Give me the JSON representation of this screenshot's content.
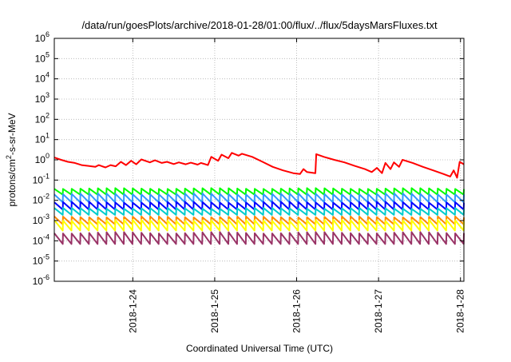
{
  "chart_data": {
    "type": "line",
    "title": "/data/run/goesPlots/archive/2018-01-28/01:00/flux/../flux/5daysMarsFluxes.txt",
    "xlabel": "Coordinated Universal Time (UTC)",
    "ylabel": "protons/cm²-s-sr-MeV",
    "y_scale": "log",
    "ylim": [
      1e-06,
      1000000.0
    ],
    "x_range_days": [
      "2018-01-23T01:00",
      "2018-01-28T01:00"
    ],
    "x_ticks": [
      {
        "label": "2018-1-24",
        "date": "2018-01-24T00:00"
      },
      {
        "label": "2018-1-25",
        "date": "2018-01-25T00:00"
      },
      {
        "label": "2018-1-26",
        "date": "2018-01-26T00:00"
      },
      {
        "label": "2018-1-27",
        "date": "2018-01-27T00:00"
      },
      {
        "label": "2018-1-28",
        "date": "2018-01-28T00:00"
      }
    ],
    "y_ticks": [
      {
        "base": "10",
        "exp": "6",
        "value": 1000000.0
      },
      {
        "base": "10",
        "exp": "5",
        "value": 100000.0
      },
      {
        "base": "10",
        "exp": "4",
        "value": 10000.0
      },
      {
        "base": "10",
        "exp": "3",
        "value": 1000.0
      },
      {
        "base": "10",
        "exp": "2",
        "value": 100.0
      },
      {
        "base": "10",
        "exp": "1",
        "value": 10.0
      },
      {
        "base": "10",
        "exp": "0",
        "value": 1
      },
      {
        "base": "10",
        "exp": "-1",
        "value": 0.1
      },
      {
        "base": "10",
        "exp": "-2",
        "value": 0.01
      },
      {
        "base": "10",
        "exp": "-3",
        "value": 0.001
      },
      {
        "base": "10",
        "exp": "-4",
        "value": 0.0001
      },
      {
        "base": "10",
        "exp": "-5",
        "value": 1e-05
      },
      {
        "base": "10",
        "exp": "-6",
        "value": 1e-06
      }
    ],
    "grid": true,
    "series": [
      {
        "color": "#ff0000",
        "points": [
          [
            "2018-01-23T01:00",
            1.3
          ],
          [
            "2018-01-23T03:00",
            1.0
          ],
          [
            "2018-01-23T05:00",
            0.8
          ],
          [
            "2018-01-23T07:00",
            0.7
          ],
          [
            "2018-01-23T09:00",
            0.55
          ],
          [
            "2018-01-23T11:00",
            0.5
          ],
          [
            "2018-01-23T13:00",
            0.45
          ],
          [
            "2018-01-23T14:00",
            0.55
          ],
          [
            "2018-01-23T16:00",
            0.42
          ],
          [
            "2018-01-23T17:30",
            0.55
          ],
          [
            "2018-01-23T19:00",
            0.48
          ],
          [
            "2018-01-23T20:30",
            0.8
          ],
          [
            "2018-01-23T22:00",
            0.55
          ],
          [
            "2018-01-23T23:30",
            0.9
          ],
          [
            "2018-01-24T01:00",
            0.6
          ],
          [
            "2018-01-24T02:30",
            1.05
          ],
          [
            "2018-01-24T05:00",
            0.75
          ],
          [
            "2018-01-24T06:30",
            0.95
          ],
          [
            "2018-01-24T08:30",
            0.7
          ],
          [
            "2018-01-24T10:00",
            0.8
          ],
          [
            "2018-01-24T12:00",
            0.62
          ],
          [
            "2018-01-24T13:30",
            0.75
          ],
          [
            "2018-01-24T15:30",
            0.6
          ],
          [
            "2018-01-24T17:00",
            0.72
          ],
          [
            "2018-01-24T19:00",
            0.58
          ],
          [
            "2018-01-24T20:00",
            0.7
          ],
          [
            "2018-01-24T22:00",
            0.55
          ],
          [
            "2018-01-24T23:00",
            1.4
          ],
          [
            "2018-01-25T01:00",
            0.9
          ],
          [
            "2018-01-25T02:00",
            1.8
          ],
          [
            "2018-01-25T04:00",
            1.2
          ],
          [
            "2018-01-25T05:00",
            2.2
          ],
          [
            "2018-01-25T07:00",
            1.6
          ],
          [
            "2018-01-25T08:00",
            2.0
          ],
          [
            "2018-01-25T11:00",
            1.4
          ],
          [
            "2018-01-25T14:00",
            0.8
          ],
          [
            "2018-01-25T17:00",
            0.45
          ],
          [
            "2018-01-25T20:00",
            0.3
          ],
          [
            "2018-01-25T23:00",
            0.22
          ],
          [
            "2018-01-26T01:00",
            0.2
          ],
          [
            "2018-01-26T02:00",
            0.35
          ],
          [
            "2018-01-26T03:00",
            0.25
          ],
          [
            "2018-01-26T05:30",
            0.22
          ],
          [
            "2018-01-26T05:45",
            1.9
          ],
          [
            "2018-01-26T08:00",
            1.4
          ],
          [
            "2018-01-26T11:00",
            1.0
          ],
          [
            "2018-01-26T14:00",
            0.75
          ],
          [
            "2018-01-26T17:00",
            0.5
          ],
          [
            "2018-01-26T20:00",
            0.35
          ],
          [
            "2018-01-26T22:00",
            0.25
          ],
          [
            "2018-01-26T23:30",
            0.4
          ],
          [
            "2018-01-27T01:00",
            0.22
          ],
          [
            "2018-01-27T02:00",
            0.7
          ],
          [
            "2018-01-27T03:30",
            0.35
          ],
          [
            "2018-01-27T04:30",
            0.75
          ],
          [
            "2018-01-27T06:00",
            0.45
          ],
          [
            "2018-01-27T07:00",
            1.0
          ],
          [
            "2018-01-27T10:00",
            0.7
          ],
          [
            "2018-01-27T13:00",
            0.45
          ],
          [
            "2018-01-27T16:00",
            0.3
          ],
          [
            "2018-01-27T19:00",
            0.2
          ],
          [
            "2018-01-27T21:00",
            0.15
          ],
          [
            "2018-01-27T22:00",
            0.3
          ],
          [
            "2018-01-27T23:00",
            0.13
          ],
          [
            "2018-01-27T23:45",
            0.8
          ],
          [
            "2018-01-28T01:00",
            0.6
          ]
        ]
      },
      {
        "color": "#00ff00",
        "min": 0.019,
        "max": 0.04
      },
      {
        "color": "#3399ff",
        "min": 0.008,
        "max": 0.022
      },
      {
        "color": "#0000ff",
        "min": 0.0035,
        "max": 0.0085
      },
      {
        "color": "#00cccc",
        "min": 0.0019,
        "max": 0.0042
      },
      {
        "color": "#ff8800",
        "min": 0.00065,
        "max": 0.0016
      },
      {
        "color": "#ffff00",
        "min": 0.00032,
        "max": 0.0011
      },
      {
        "color": "#993366",
        "min": 7e-05,
        "max": 0.00027
      }
    ],
    "sawtooth_cycles": 47
  }
}
